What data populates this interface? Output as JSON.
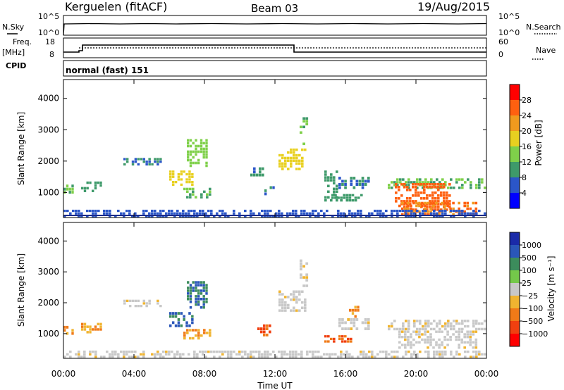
{
  "header": {
    "station": "Kerguelen (fitACF)",
    "beam": "Beam 03",
    "date": "19/Aug/2015"
  },
  "panels": {
    "nsky_label": "N.Sky",
    "nsky_ticks": [
      "10^5",
      "10^0"
    ],
    "nsearch_label": "N.Search",
    "nsearch_ticks": [
      "10^5",
      "10^0"
    ],
    "freq_label_1": "Freq.",
    "freq_label_2": "[MHz]",
    "freq_ticks": [
      "18",
      "8"
    ],
    "nave_label": "Nave",
    "nave_ticks": [
      "60",
      "0"
    ],
    "cpid_label": "CPID",
    "cpid_value": "normal (fast) 151"
  },
  "colors": {
    "power": [
      "#0000ff",
      "#2b56c8",
      "#3e9a6a",
      "#7fd04a",
      "#e8d020",
      "#f09a1e",
      "#ff6010",
      "#ff0000"
    ],
    "velocity": [
      "#1a2aa8",
      "#2a56b8",
      "#3c8c5c",
      "#74c84a",
      "#c8c8c8",
      "#f0b430",
      "#f07a18",
      "#f04010",
      "#ff0000"
    ],
    "ground_line": "#1a2a8a"
  },
  "chart_data": [
    {
      "type": "heatmap",
      "ylabel": "Slant Range [km]",
      "xlabel": "",
      "x_ticks": [
        "00:00",
        "04:00",
        "08:00",
        "12:00",
        "16:00",
        "20:00",
        "00:00"
      ],
      "y_ticks": [
        "1000",
        "2000",
        "3000",
        "4000"
      ],
      "ylim": [
        200,
        4600
      ],
      "colorbar_label": "Power [dB]",
      "colorbar_ticks": [
        "4",
        "8",
        "12",
        "16",
        "20",
        "24",
        "28"
      ],
      "colorbar_range": [
        0,
        32
      ],
      "echo_regions": [
        {
          "t0": 0.0,
          "t1": 0.6,
          "r0": 950,
          "r1": 1250,
          "value": 12
        },
        {
          "t0": 1.0,
          "t1": 2.2,
          "r0": 1000,
          "r1": 1350,
          "value": 10
        },
        {
          "t0": 3.4,
          "t1": 5.6,
          "r0": 1850,
          "r1": 2100,
          "value": 8
        },
        {
          "t0": 6.0,
          "t1": 7.4,
          "r0": 1200,
          "r1": 1700,
          "value": 18
        },
        {
          "t0": 7.0,
          "t1": 8.2,
          "r0": 1800,
          "r1": 2700,
          "value": 14
        },
        {
          "t0": 6.8,
          "t1": 8.4,
          "r0": 800,
          "r1": 1150,
          "value": 12
        },
        {
          "t0": 10.6,
          "t1": 11.4,
          "r0": 1500,
          "r1": 1800,
          "value": 8
        },
        {
          "t0": 11.4,
          "t1": 12.0,
          "r0": 900,
          "r1": 1200,
          "value": 8
        },
        {
          "t0": 12.2,
          "t1": 13.8,
          "r0": 1700,
          "r1": 2400,
          "value": 18
        },
        {
          "t0": 13.4,
          "t1": 13.9,
          "r0": 2500,
          "r1": 3400,
          "value": 12
        },
        {
          "t0": 14.8,
          "t1": 15.6,
          "r0": 700,
          "r1": 1700,
          "value": 10
        },
        {
          "t0": 15.6,
          "t1": 17.4,
          "r0": 1100,
          "r1": 1500,
          "value": 8
        },
        {
          "t0": 15.2,
          "t1": 17.0,
          "r0": 700,
          "r1": 950,
          "value": 10
        },
        {
          "t0": 18.4,
          "t1": 24.0,
          "r0": 1100,
          "r1": 1450,
          "value": 12
        },
        {
          "t0": 18.8,
          "t1": 22.0,
          "r0": 400,
          "r1": 1300,
          "value": 26
        },
        {
          "t0": 19.0,
          "t1": 23.5,
          "r0": 250,
          "r1": 700,
          "value": 24
        },
        {
          "t0": 0.0,
          "t1": 24.0,
          "r0": 200,
          "r1": 450,
          "value": 6
        }
      ]
    },
    {
      "type": "heatmap",
      "ylabel": "Slant Range [km]",
      "xlabel": "Time UT",
      "x_ticks": [
        "00:00",
        "04:00",
        "08:00",
        "12:00",
        "16:00",
        "20:00",
        "00:00"
      ],
      "y_ticks": [
        "1000",
        "2000",
        "3000",
        "4000"
      ],
      "ylim": [
        200,
        4600
      ],
      "colorbar_label": "Velocity [m s⁻¹]",
      "colorbar_ticks": [
        "1000",
        "500",
        "100",
        "25",
        "−25",
        "−100",
        "−500",
        "−1000"
      ],
      "echo_regions": [
        {
          "t0": 0.0,
          "t1": 0.6,
          "r0": 950,
          "r1": 1250,
          "value": -100
        },
        {
          "t0": 1.0,
          "t1": 2.2,
          "r0": 1000,
          "r1": 1350,
          "value": -100
        },
        {
          "t0": 3.4,
          "t1": 5.6,
          "r0": 1850,
          "r1": 2100,
          "value": 0
        },
        {
          "t0": 6.0,
          "t1": 7.4,
          "r0": 1200,
          "r1": 1700,
          "value": 100
        },
        {
          "t0": 7.0,
          "t1": 8.2,
          "r0": 1800,
          "r1": 2700,
          "value": 100
        },
        {
          "t0": 6.8,
          "t1": 8.4,
          "r0": 800,
          "r1": 1150,
          "value": -100
        },
        {
          "t0": 11.0,
          "t1": 11.8,
          "r0": 900,
          "r1": 1300,
          "value": -500
        },
        {
          "t0": 12.2,
          "t1": 13.8,
          "r0": 1700,
          "r1": 2400,
          "value": 0
        },
        {
          "t0": 13.4,
          "t1": 13.9,
          "r0": 2500,
          "r1": 3400,
          "value": 0
        },
        {
          "t0": 14.8,
          "t1": 16.4,
          "r0": 700,
          "r1": 950,
          "value": -500
        },
        {
          "t0": 15.6,
          "t1": 17.4,
          "r0": 1100,
          "r1": 1500,
          "value": 0
        },
        {
          "t0": 16.2,
          "t1": 16.8,
          "r0": 1500,
          "r1": 1900,
          "value": -100
        },
        {
          "t0": 18.4,
          "t1": 24.0,
          "r0": 1100,
          "r1": 1450,
          "value": 0
        },
        {
          "t0": 19.0,
          "t1": 23.5,
          "r0": 500,
          "r1": 1100,
          "value": 0
        },
        {
          "t0": 0.0,
          "t1": 24.0,
          "r0": 200,
          "r1": 450,
          "value": 0
        }
      ]
    }
  ]
}
